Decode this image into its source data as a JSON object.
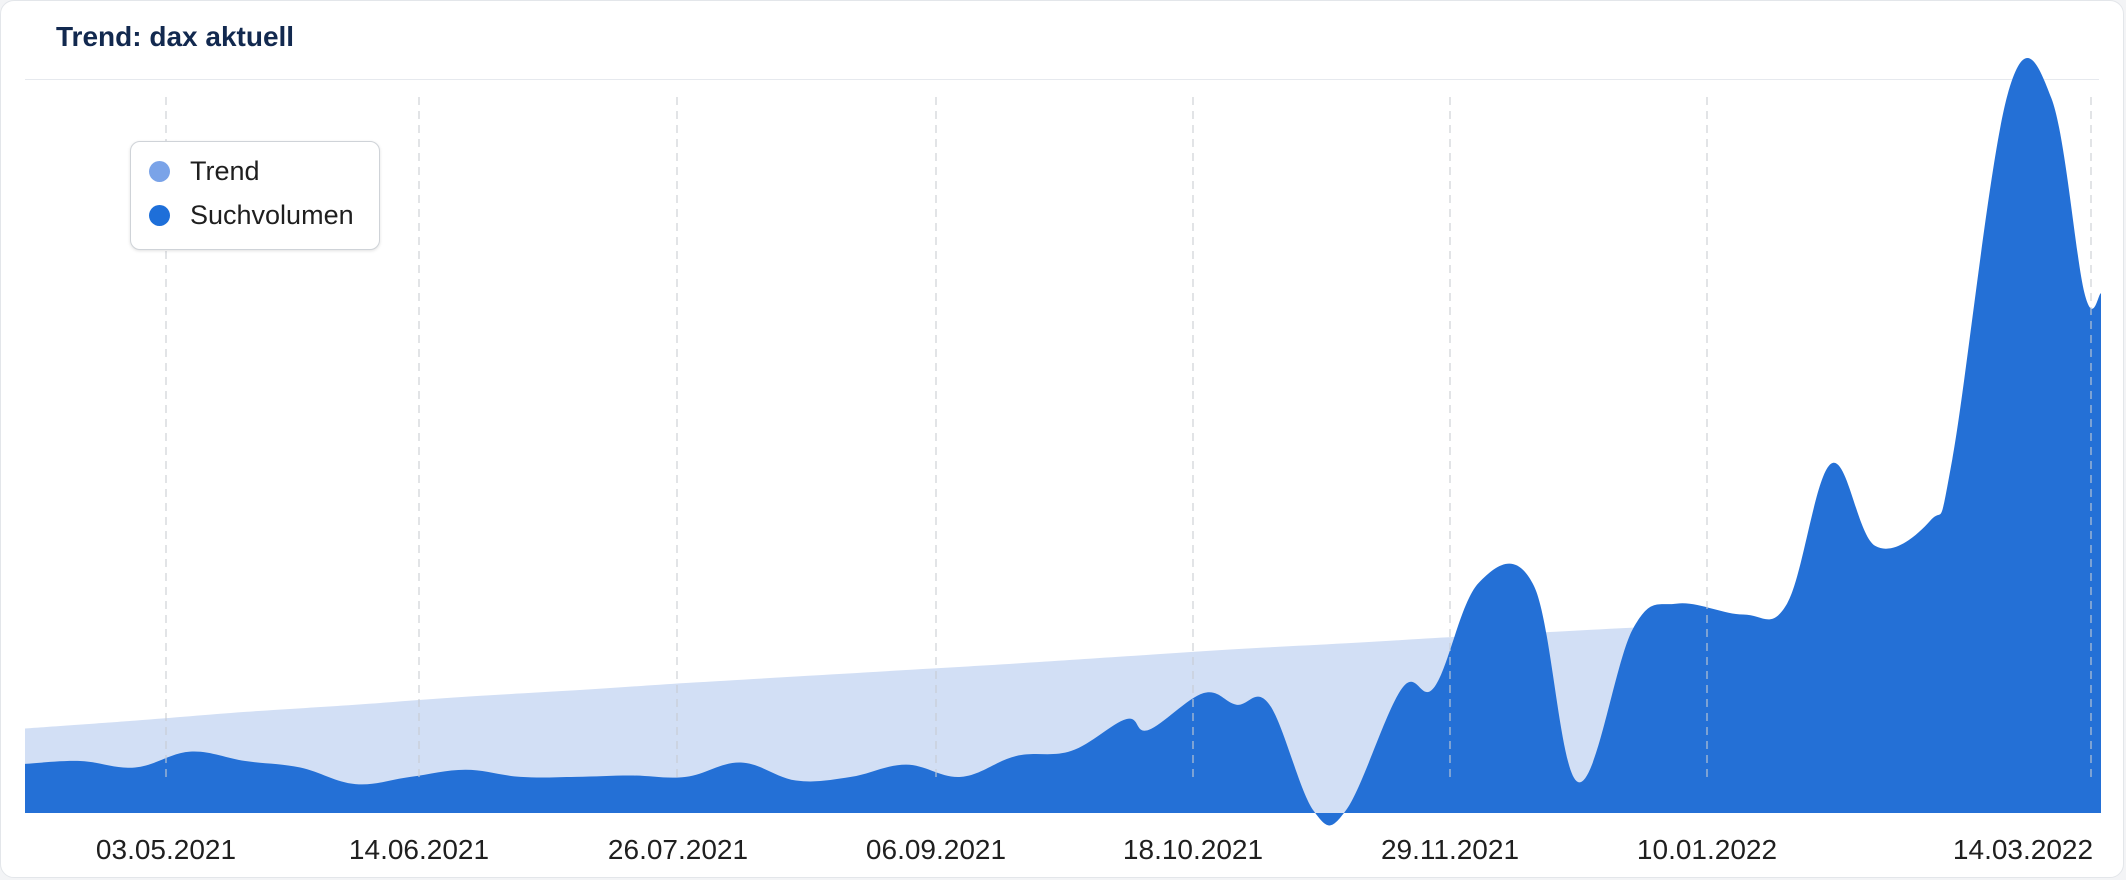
{
  "title": "Trend: dax aktuell",
  "legend": {
    "items": [
      {
        "label": "Trend",
        "color": "#7aa3e8"
      },
      {
        "label": "Suchvolumen",
        "color": "#1e6fd9"
      }
    ]
  },
  "chart_data": {
    "type": "area",
    "title": "Trend: dax aktuell",
    "xlabel": "",
    "ylabel": "",
    "ylim": [
      0,
      100
    ],
    "grid": "vertical-dashed",
    "legend_position": "top-left",
    "x_ticks": [
      "03.05.2021",
      "14.06.2021",
      "26.07.2021",
      "06.09.2021",
      "18.10.2021",
      "29.11.2021",
      "10.01.2022",
      "14.03.2022"
    ],
    "series": [
      {
        "name": "Trend",
        "color": "#d2dff5",
        "points": [
          [
            0,
            11.7
          ],
          [
            10,
            12.8
          ],
          [
            20,
            14.0
          ],
          [
            30,
            15.0
          ],
          [
            40,
            16.1
          ],
          [
            50,
            17.0
          ],
          [
            60,
            18.0
          ],
          [
            70,
            18.9
          ],
          [
            80,
            19.8
          ],
          [
            90,
            20.7
          ],
          [
            100,
            21.7
          ],
          [
            110,
            22.7
          ],
          [
            120,
            23.5
          ],
          [
            130,
            24.4
          ],
          [
            140,
            25.2
          ],
          [
            150,
            26.0
          ],
          [
            160,
            26.9
          ],
          [
            170,
            27.4
          ],
          [
            180,
            28.0
          ]
        ]
      },
      {
        "name": "Suchvolumen",
        "color": "#2470d6",
        "points": [
          [
            0,
            6.8
          ],
          [
            5,
            7.2
          ],
          [
            10,
            6.3
          ],
          [
            15,
            8.5
          ],
          [
            20,
            7.2
          ],
          [
            25,
            6.3
          ],
          [
            30,
            4.0
          ],
          [
            35,
            5.0
          ],
          [
            40,
            6.0
          ],
          [
            45,
            5.0
          ],
          [
            50,
            5.0
          ],
          [
            55,
            5.2
          ],
          [
            60,
            5.0
          ],
          [
            65,
            7.0
          ],
          [
            70,
            4.5
          ],
          [
            75,
            5.0
          ],
          [
            80,
            6.7
          ],
          [
            85,
            5.0
          ],
          [
            90,
            7.9
          ],
          [
            95,
            8.6
          ],
          [
            100,
            13.0
          ],
          [
            102,
            11.5
          ],
          [
            107,
            16.6
          ],
          [
            110,
            15.0
          ],
          [
            113,
            15.0
          ],
          [
            117,
            0.3
          ],
          [
            120,
            0.5
          ],
          [
            125,
            17.2
          ],
          [
            128,
            17.5
          ],
          [
            132,
            31.9
          ],
          [
            137,
            31.5
          ],
          [
            141,
            4.3
          ],
          [
            146,
            25.5
          ],
          [
            150,
            29.0
          ],
          [
            156,
            27.5
          ],
          [
            160,
            29.0
          ],
          [
            164,
            48.4
          ],
          [
            168,
            37.0
          ],
          [
            173,
            40.5
          ],
          [
            175,
            49.0
          ],
          [
            180,
            99.4
          ],
          [
            184,
            99.0
          ],
          [
            187,
            72.0
          ],
          [
            188.5,
            72.0
          ]
        ]
      }
    ]
  }
}
